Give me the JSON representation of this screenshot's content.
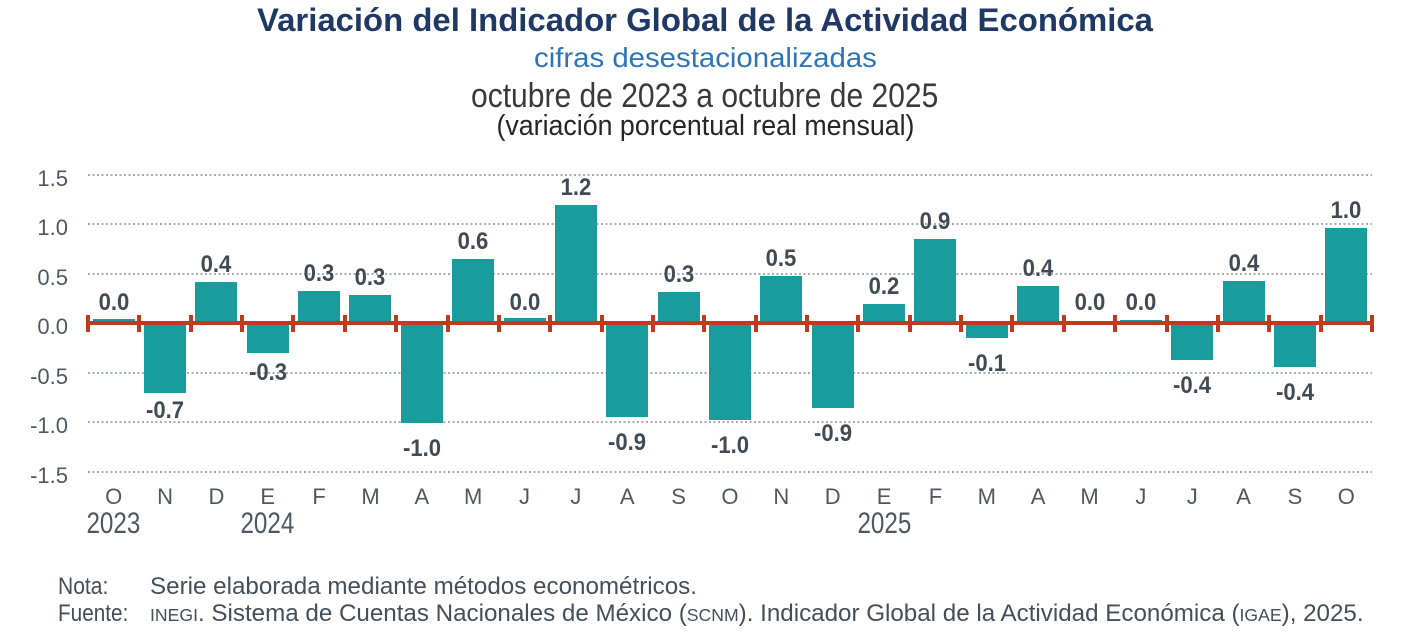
{
  "header": {
    "title": "Variación del Indicador Global de la Actividad Económica",
    "subtitle": "cifras desestacionalizadas",
    "period": "octubre de 2023 a octubre de 2025",
    "units": "(variación porcentual real mensual)"
  },
  "chart_data": {
    "type": "bar",
    "title": "Variación del Indicador Global de la Actividad Económica",
    "subtitle": "cifras desestacionalizadas",
    "period": "octubre de 2023 a octubre de 2025",
    "ylabel": "variación porcentual real mensual",
    "categories": [
      "O",
      "N",
      "D",
      "E",
      "F",
      "M",
      "A",
      "M",
      "J",
      "J",
      "A",
      "S",
      "O",
      "N",
      "D",
      "E",
      "F",
      "M",
      "A",
      "M",
      "J",
      "J",
      "A",
      "S",
      "O"
    ],
    "values": [
      0.0,
      -0.7,
      0.4,
      -0.3,
      0.3,
      0.3,
      -1.0,
      0.6,
      0.0,
      1.2,
      -0.9,
      0.3,
      -1.0,
      0.5,
      -0.9,
      0.2,
      0.9,
      -0.1,
      0.4,
      0.0,
      0.0,
      -0.4,
      0.4,
      -0.4,
      1.0
    ],
    "value_labels": [
      "0.0",
      "-0.7",
      "0.4",
      "-0.3",
      "0.3",
      "0.3",
      "-1.0",
      "0.6",
      "0.0",
      "1.2",
      "-0.9",
      "0.3",
      "-1.0",
      "0.5",
      "-0.9",
      "0.2",
      "0.9",
      "-0.1",
      "0.4",
      "0.0",
      "0.0",
      "-0.4",
      "0.4",
      "-0.4",
      "1.0"
    ],
    "bar_heights_est": [
      0.04,
      -0.71,
      0.42,
      -0.3,
      0.33,
      0.29,
      -1.01,
      0.65,
      0.05,
      1.2,
      -0.95,
      0.32,
      -0.98,
      0.48,
      -0.86,
      0.2,
      0.85,
      -0.15,
      0.38,
      0.0,
      0.03,
      -0.37,
      0.43,
      -0.44,
      0.96
    ],
    "year_markers": [
      {
        "index": 0,
        "label": "2023"
      },
      {
        "index": 3,
        "label": "2024"
      },
      {
        "index": 15,
        "label": "2025"
      }
    ],
    "y_ticks": [
      "1.5",
      "1.0",
      "0.5",
      "0.0",
      "-0.5",
      "-1.0",
      "-1.5"
    ],
    "ylim": [
      -1.5,
      1.5
    ],
    "grid": "dotted horizontal",
    "colors": {
      "bar": "#1B9C9C",
      "zero_line": "#C13A1E",
      "grid": "#A8ADB4",
      "data_label": "#414B55",
      "axis_text": "#4F5862",
      "title": "#1F3864",
      "subtitle": "#2E75B6"
    }
  },
  "notes": {
    "nota_label": "Nota:",
    "nota_text": "Serie elaborada mediante métodos econométricos.",
    "fuente_label": "Fuente:",
    "fuente_inegi": "INEGI",
    "fuente_mid1": ". Sistema de Cuentas Nacionales de México (",
    "fuente_scnm": "SCNM",
    "fuente_mid2": "). Indicador Global de la Actividad Económica (",
    "fuente_igae": "IGAE",
    "fuente_end": "), 2025."
  }
}
